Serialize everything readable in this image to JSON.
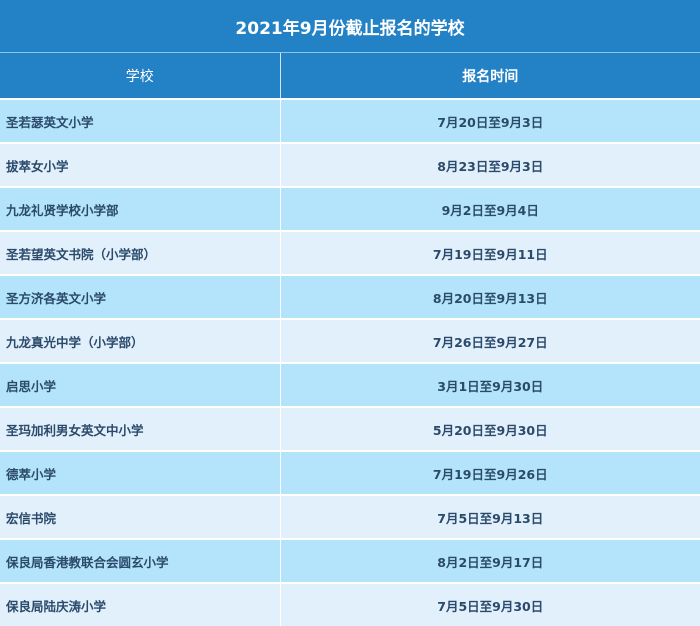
{
  "title": "2021年9月份截止报名的学校",
  "columns": [
    "学校",
    "报名时间"
  ],
  "rows": [
    {
      "school": "圣若瑟英文小学",
      "time": "7月20日至9月3日"
    },
    {
      "school": "拔萃女小学",
      "time": "8月23日至9月3日"
    },
    {
      "school": "九龙礼贤学校小学部",
      "time": "9月2日至9月4日"
    },
    {
      "school": "圣若望英文书院（小学部）",
      "time": "7月19日至9月11日"
    },
    {
      "school": "圣方济各英文小学",
      "time": "8月20日至9月13日"
    },
    {
      "school": "九龙真光中学（小学部）",
      "time": "7月26日至9月27日"
    },
    {
      "school": "启思小学",
      "time": "3月1日至9月30日"
    },
    {
      "school": "圣玛加利男女英文中小学",
      "time": "5月20日至9月30日"
    },
    {
      "school": "德萃小学",
      "time": "7月19日至9月26日"
    },
    {
      "school": "宏信书院",
      "time": "7月5日至9月13日"
    },
    {
      "school": "保良局香港教联合会圆玄小学",
      "time": "8月2日至9月17日"
    },
    {
      "school": "保良局陆庆涛小学",
      "time": "7月5日至9月30日"
    }
  ],
  "colors": {
    "header": "#2381c6",
    "row_odd": "#b3e4fb",
    "row_even": "#e2f0fb",
    "text": "#2b4a6b"
  }
}
